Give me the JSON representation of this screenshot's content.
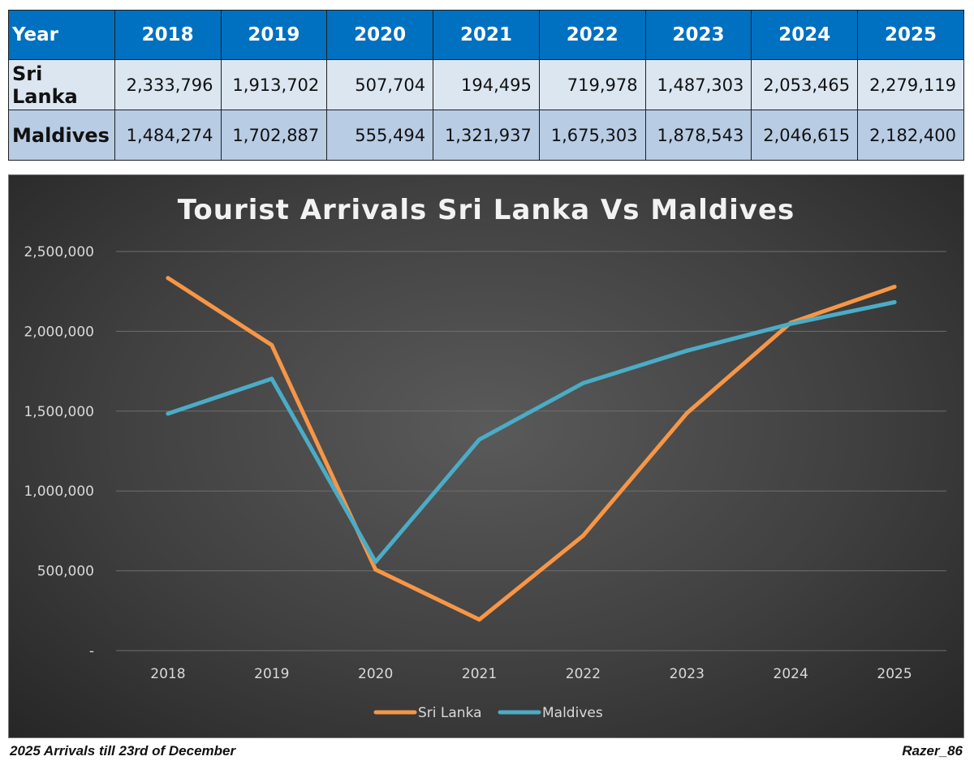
{
  "table": {
    "header_label": "Year",
    "years": [
      "2018",
      "2019",
      "2020",
      "2021",
      "2022",
      "2023",
      "2024",
      "2025"
    ],
    "rows": [
      {
        "label": "Sri Lanka",
        "cells": [
          "2,333,796",
          "1,913,702",
          "507,704",
          "194,495",
          "719,978",
          "1,487,303",
          "2,053,465",
          "2,279,119"
        ]
      },
      {
        "label": "Maldives",
        "cells": [
          "1,484,274",
          "1,702,887",
          "555,494",
          "1,321,937",
          "1,675,303",
          "1,878,543",
          "2,046,615",
          "2,182,400"
        ]
      }
    ]
  },
  "chart_data": {
    "type": "line",
    "title": "Tourist Arrivals Sri Lanka Vs Maldives",
    "categories": [
      "2018",
      "2019",
      "2020",
      "2021",
      "2022",
      "2023",
      "2024",
      "2025"
    ],
    "series": [
      {
        "name": "Sri Lanka",
        "color": "#f79646",
        "values": [
          2333796,
          1913702,
          507704,
          194495,
          719978,
          1487303,
          2053465,
          2279119
        ]
      },
      {
        "name": "Maldives",
        "color": "#4bacc6",
        "values": [
          1484274,
          1702887,
          555494,
          1321937,
          1675303,
          1878543,
          2046615,
          2182400
        ]
      }
    ],
    "ylim": [
      0,
      2500000
    ],
    "yticks": [
      0,
      500000,
      1000000,
      1500000,
      2000000,
      2500000
    ],
    "ytick_labels": [
      "-",
      "500,000",
      "1,000,000",
      "1,500,000",
      "2,000,000",
      "2,500,000"
    ],
    "grid": true,
    "legend_position": "bottom"
  },
  "footer": {
    "note": "2025 Arrivals till 23rd of December",
    "credit": "Razer_86"
  }
}
